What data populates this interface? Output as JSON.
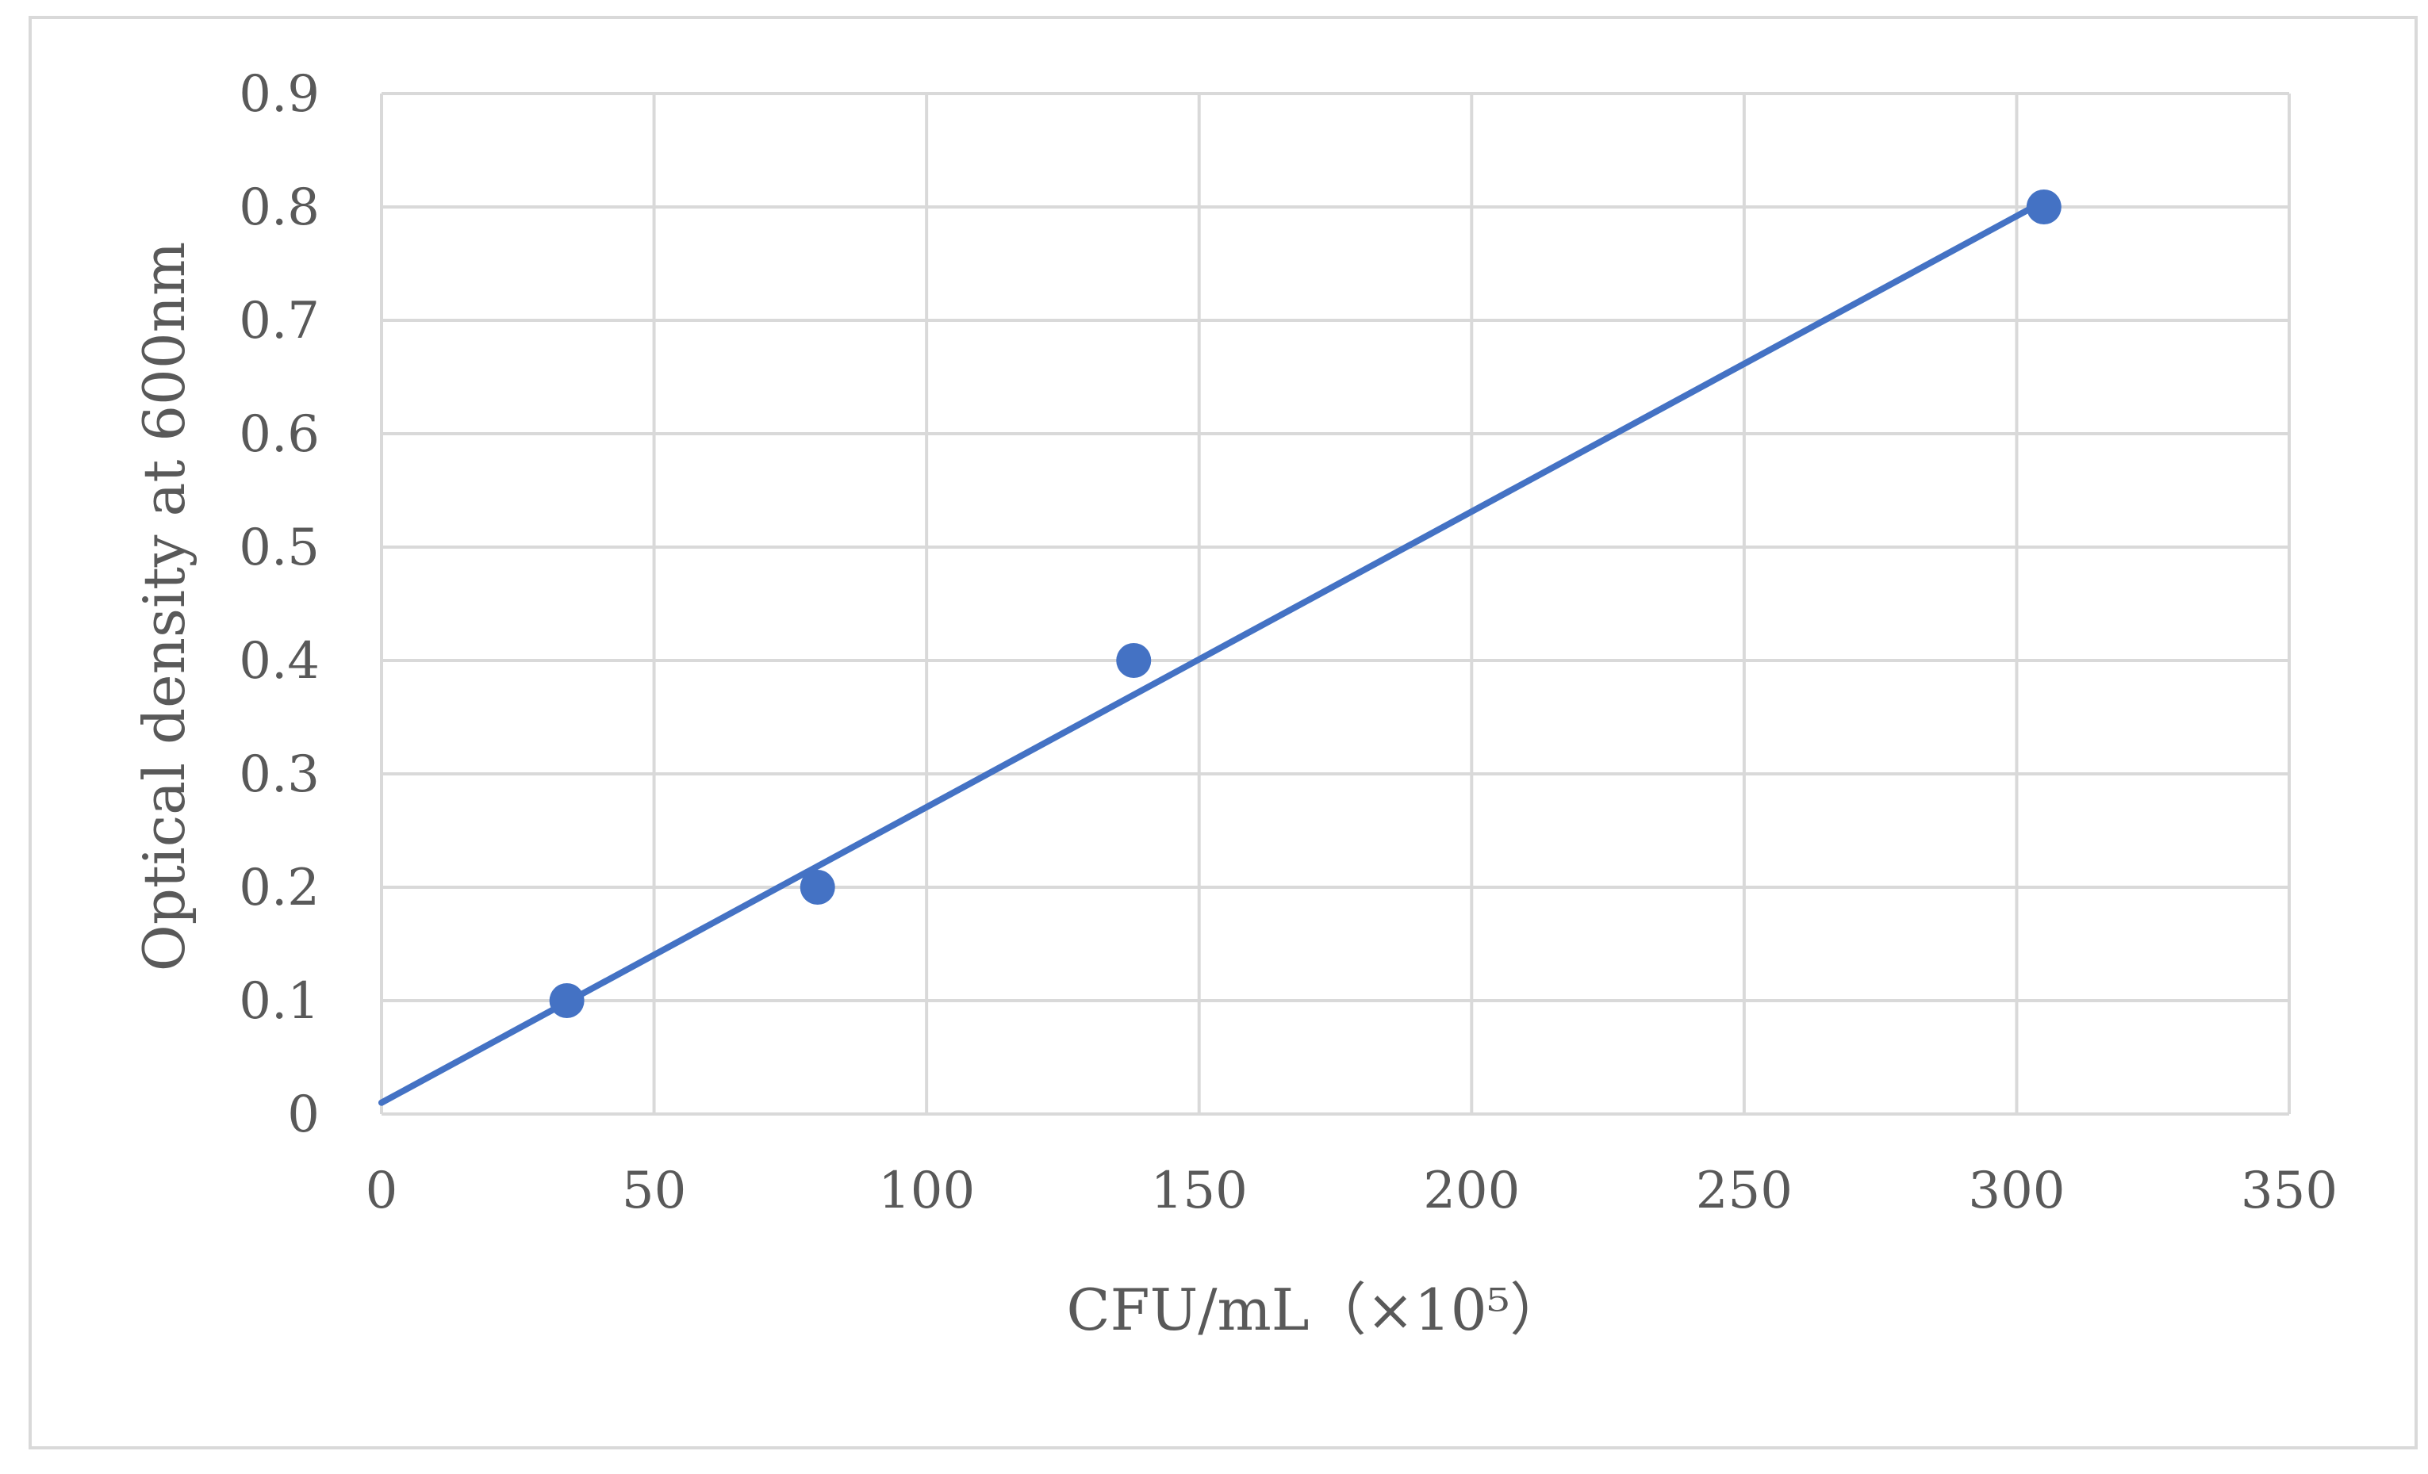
{
  "chart_data": {
    "type": "scatter",
    "xlabel": "CFU/mL（×10⁵）",
    "ylabel": "Optical density at 600nm",
    "xlim": [
      0,
      350
    ],
    "ylim": [
      0,
      0.9
    ],
    "x_ticks": [
      "0",
      "50",
      "100",
      "150",
      "200",
      "250",
      "300",
      "350"
    ],
    "y_ticks": [
      "0",
      "0.1",
      "0.2",
      "0.3",
      "0.4",
      "0.5",
      "0.6",
      "0.7",
      "0.8",
      "0.9"
    ],
    "grid": true,
    "legend": "none",
    "series": [
      {
        "x": [
          34,
          80,
          138,
          305
        ],
        "y": [
          0.1,
          0.2,
          0.4,
          0.8
        ],
        "color": "#4472c4"
      }
    ],
    "trendline": {
      "type": "linear",
      "x_range": [
        0,
        305
      ],
      "y_at_start": 0.01,
      "y_at_end": 0.805,
      "color": "#4472c4"
    }
  }
}
